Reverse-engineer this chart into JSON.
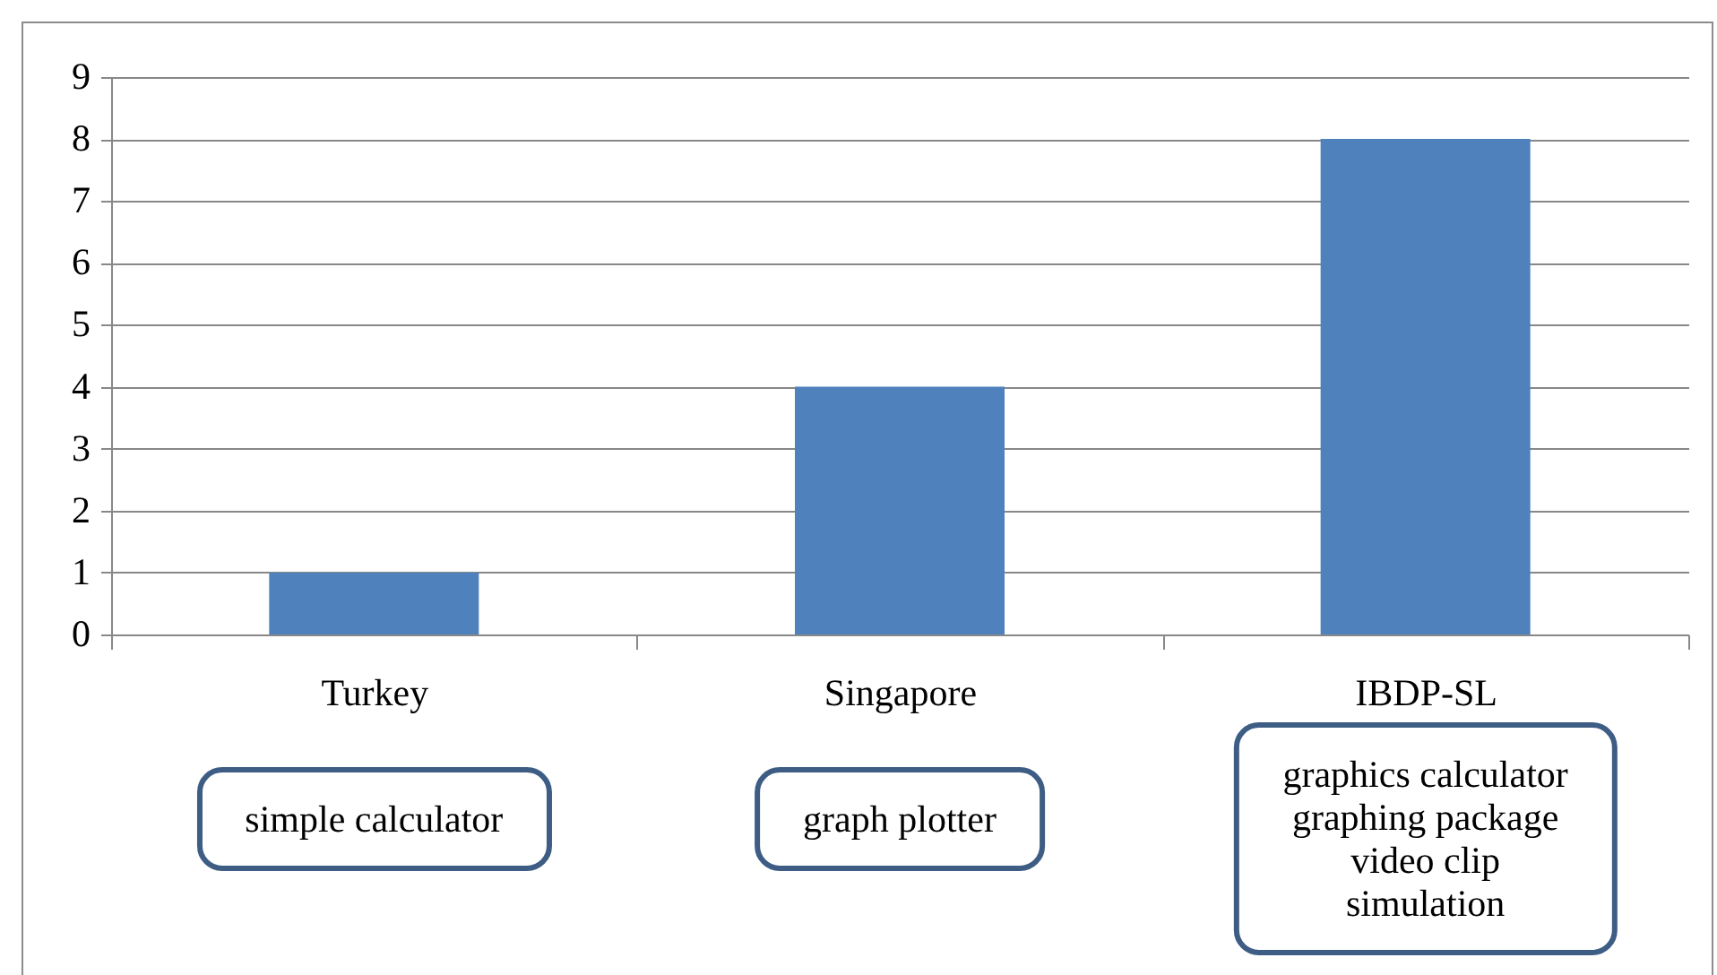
{
  "chart_data": {
    "type": "bar",
    "categories": [
      "Turkey",
      "Singapore",
      "IBDP-SL"
    ],
    "values": [
      1,
      4,
      8
    ],
    "color": "#4f81bd",
    "ylim": [
      0,
      9
    ],
    "yticks": [
      0,
      1,
      2,
      3,
      4,
      5,
      6,
      7,
      8,
      9
    ],
    "grid": "y",
    "annotations": [
      "simple calculator",
      "graph plotter",
      "graphics calculator\ngraphing package\nvideo clip\nsimulation"
    ]
  }
}
